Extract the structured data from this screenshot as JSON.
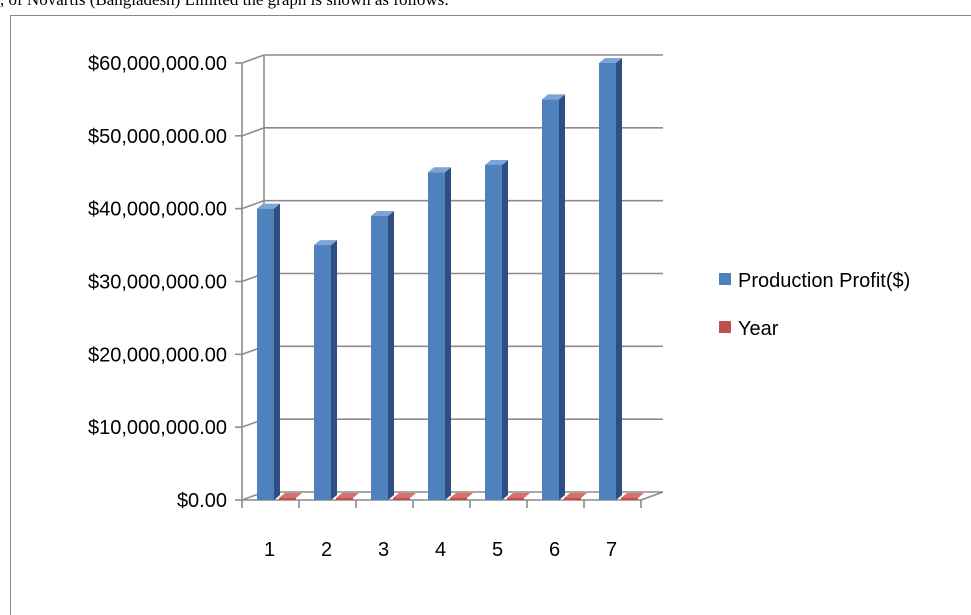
{
  "caption": ", of Novartis (Bangladesh) Limited the graph is shown as follows:",
  "chart_data": {
    "type": "bar",
    "categories": [
      "1",
      "2",
      "3",
      "4",
      "5",
      "6",
      "7"
    ],
    "series": [
      {
        "name": "Production Profit($)",
        "values": [
          40000000,
          35000000,
          39000000,
          45000000,
          46000000,
          55000000,
          60000000
        ],
        "color": "#4F81BD"
      },
      {
        "name": "Year",
        "values": [
          1,
          2,
          3,
          4,
          5,
          6,
          7
        ],
        "color": "#C0504D"
      }
    ],
    "y_ticks": [
      "$0.00",
      "$10,000,000.00",
      "$20,000,000.00",
      "$30,000,000.00",
      "$40,000,000.00",
      "$50,000,000.00",
      "$60,000,000.00"
    ],
    "ylim": [
      0,
      60000000
    ],
    "grid": true,
    "legend_position": "right",
    "style": "3d-column"
  }
}
